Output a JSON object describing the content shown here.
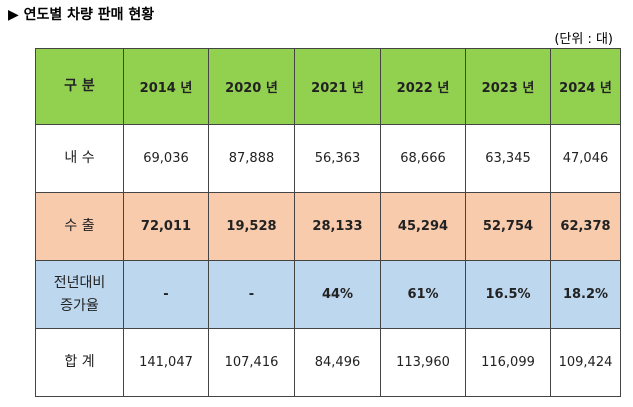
{
  "title": "▶ 연도별 차량 판매 현황",
  "unit": "(단위 : 대)",
  "table": {
    "header": [
      "구 분",
      "2014 년",
      "2020 년",
      "2021 년",
      "2022 년",
      "2023 년",
      "2024 년"
    ],
    "rows": [
      [
        "내 수",
        "69,036",
        "87,888",
        "56,363",
        "68,666",
        "63,345",
        "47,046"
      ],
      [
        "수 출",
        "72,011",
        "19,528",
        "28,133",
        "45,294",
        "52,754",
        "62,378"
      ],
      [
        "전년대비\n증가율",
        "-",
        "-",
        "44%",
        "61%",
        "16.5%",
        "18.2%"
      ],
      [
        "합 계",
        "141,047",
        "107,416",
        "84,496",
        "113,960",
        "116,099",
        "109,424"
      ]
    ]
  }
}
